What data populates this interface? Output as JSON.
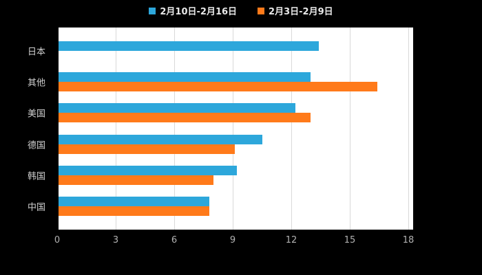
{
  "chart_data": {
    "type": "bar",
    "orientation": "horizontal",
    "title": "",
    "xlabel": "",
    "ylabel": "",
    "categories": [
      "日本",
      "其他",
      "美国",
      "德国",
      "韩国",
      "中国"
    ],
    "series": [
      {
        "name": "2月10日-2月16日",
        "color": "#2da7db",
        "values": [
          13.4,
          13.0,
          12.2,
          10.5,
          9.2,
          7.8
        ]
      },
      {
        "name": "2月3日-2月9日",
        "color": "#ff7a1a",
        "values": [
          null,
          16.4,
          13.0,
          9.1,
          8.0,
          7.8
        ]
      }
    ],
    "xlim": [
      0,
      18
    ],
    "xticks": [
      0,
      3,
      6,
      9,
      12,
      15,
      18
    ],
    "grid": true,
    "legend_position": "top"
  },
  "colors": {
    "page_background": "#000000",
    "plot_background": "#ffffff",
    "gridline": "#d9d9d9",
    "axis_line": "#000000",
    "legend_text": "#e8e8e8",
    "category_label_text": "#cfcfcf",
    "tick_label_text": "#b3b3b3"
  }
}
